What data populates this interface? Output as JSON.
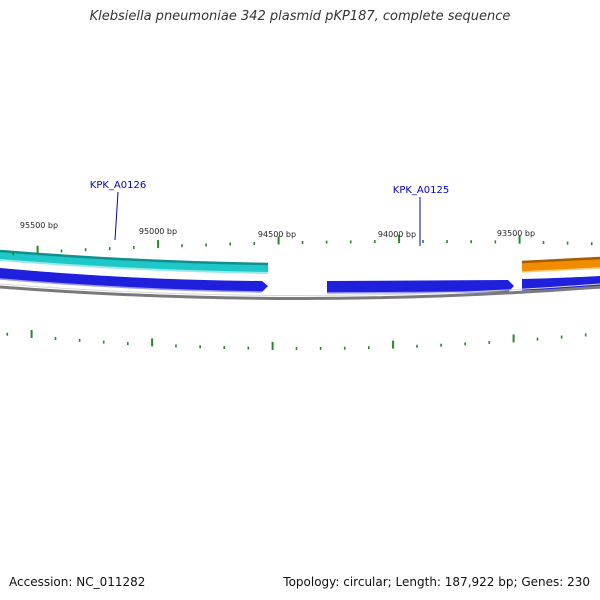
{
  "title": "Klebsiella pneumoniae 342 plasmid pKP187, complete sequence",
  "footer": {
    "accession": "Accession: NC_011282",
    "stats": "Topology: circular; Length: 187,922 bp; Genes: 230"
  },
  "colors": {
    "forward_cds": "#2a2adb",
    "reverse_cds_cyan": "#1ec8c8",
    "reverse_cds_orange": "#f08c00",
    "backbone": "#777777",
    "ticks": "#228b22",
    "gene_label": "#0000cc"
  },
  "ticks": {
    "labels": [
      "95500 bp",
      "95000 bp",
      "94500 bp",
      "94000 bp",
      "93500 bp"
    ]
  },
  "genes": [
    {
      "label": "KPK_A0126"
    },
    {
      "label": "KPK_A0125"
    }
  ]
}
